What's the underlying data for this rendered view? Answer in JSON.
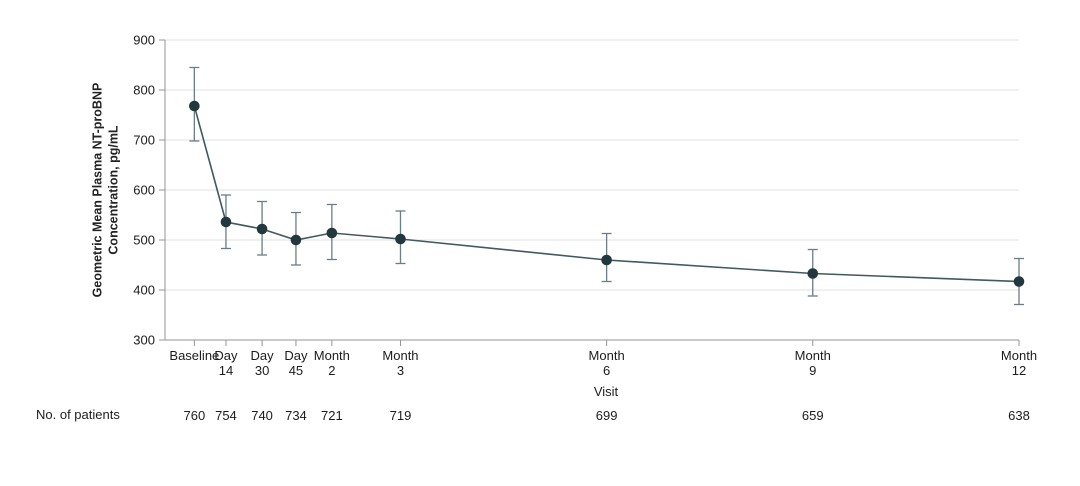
{
  "figure": {
    "y_axis_title_line1": "Geometric Mean Plasma NT-proBNP",
    "y_axis_title_line2": "Concentration, pg/mL",
    "x_axis_title": "Visit",
    "patients_row_label": "No. of patients"
  },
  "chart_data": {
    "type": "line",
    "title": "",
    "xlabel": "Visit",
    "ylabel": "Geometric Mean Plasma NT-proBNP Concentration, pg/mL",
    "legend": [],
    "y_axis": {
      "min": 300,
      "max": 900,
      "ticks": [
        300,
        400,
        500,
        600,
        700,
        800,
        900
      ],
      "gridlines": true
    },
    "x_axis": {
      "unit": "days",
      "domain": [
        -13,
        365.25
      ]
    },
    "series": [
      {
        "name": "",
        "points": [
          {
            "label_lines": [
              "Baseline"
            ],
            "day": 0,
            "value": 768,
            "ci_low": 698,
            "ci_high": 845,
            "n_patients": 760
          },
          {
            "label_lines": [
              "Day",
              "14"
            ],
            "day": 14,
            "value": 536,
            "ci_low": 483,
            "ci_high": 590,
            "n_patients": 754
          },
          {
            "label_lines": [
              "Day",
              "30"
            ],
            "day": 30,
            "value": 522,
            "ci_low": 470,
            "ci_high": 577,
            "n_patients": 740
          },
          {
            "label_lines": [
              "Day",
              "45"
            ],
            "day": 45,
            "value": 500,
            "ci_low": 450,
            "ci_high": 555,
            "n_patients": 734
          },
          {
            "label_lines": [
              "Month",
              "2"
            ],
            "day": 60.9,
            "value": 514,
            "ci_low": 461,
            "ci_high": 571,
            "n_patients": 721
          },
          {
            "label_lines": [
              "Month",
              "3"
            ],
            "day": 91.3,
            "value": 502,
            "ci_low": 453,
            "ci_high": 558,
            "n_patients": 719
          },
          {
            "label_lines": [
              "Month",
              "6"
            ],
            "day": 182.6,
            "value": 460,
            "ci_low": 417,
            "ci_high": 513,
            "n_patients": 699
          },
          {
            "label_lines": [
              "Month",
              "9"
            ],
            "day": 273.9,
            "value": 433,
            "ci_low": 388,
            "ci_high": 481,
            "n_patients": 659
          },
          {
            "label_lines": [
              "Month",
              "12"
            ],
            "day": 365.25,
            "value": 417,
            "ci_low": 371,
            "ci_high": 463,
            "n_patients": 638
          }
        ]
      }
    ],
    "patients_row_label": "No. of patients",
    "colors": {
      "point": "#22383e",
      "line": "#41595f",
      "error_bar": "#6b7e83",
      "gridline": "#e2e2e2",
      "axis": "#949494",
      "text": "#1c1c1c"
    }
  }
}
